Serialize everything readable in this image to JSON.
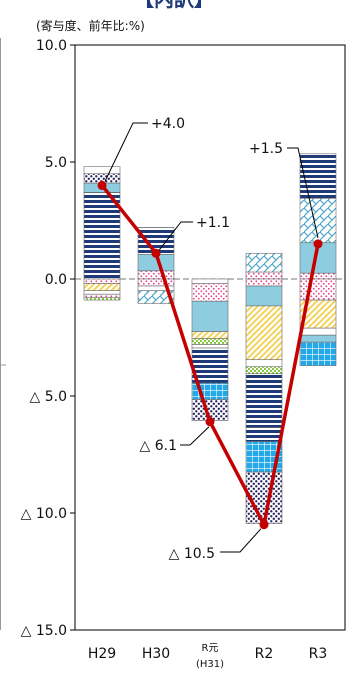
{
  "header_fragment": "【内訳】",
  "chart_data": {
    "type": "bar+line",
    "unit_label": "(寄与度、前年比:%)",
    "ylim": [
      -15,
      10
    ],
    "yticks": [
      {
        "value": 10,
        "label": "10.0"
      },
      {
        "value": 5,
        "label": "5.0"
      },
      {
        "value": 0,
        "label": "0.0"
      },
      {
        "value": -5,
        "label": "△ 5.0"
      },
      {
        "value": -10,
        "label": "△ 10.0"
      },
      {
        "value": -15,
        "label": "△ 15.0"
      }
    ],
    "categories": [
      {
        "label": "H29",
        "sub": ""
      },
      {
        "label": "H30",
        "sub": ""
      },
      {
        "label": "R元",
        "sub": "(H31)"
      },
      {
        "label": "R2",
        "sub": ""
      },
      {
        "label": "R3",
        "sub": ""
      }
    ],
    "stacks": [
      {
        "pos": [
          {
            "v": 3.7,
            "p": "hstripe-navy"
          },
          {
            "v": 0.4,
            "p": "solid-blue"
          },
          {
            "v": 0.4,
            "p": "dots-navy"
          },
          {
            "v": 0.3,
            "p": "plain"
          }
        ],
        "neg": [
          {
            "v": 0.2,
            "p": "dots-pink"
          },
          {
            "v": 0.3,
            "p": "diag-yellow"
          },
          {
            "v": 0.15,
            "p": "plain"
          },
          {
            "v": 0.15,
            "p": "dots-pink"
          },
          {
            "v": 0.1,
            "p": "check-green"
          }
        ]
      },
      {
        "pos": [
          {
            "v": 0.35,
            "p": "dots-pink"
          },
          {
            "v": 0.7,
            "p": "solid-blue"
          },
          {
            "v": 1.15,
            "p": "hstripe-navy"
          }
        ],
        "neg": [
          {
            "v": 0.3,
            "p": "dots-pink"
          },
          {
            "v": 0.2,
            "p": "plain"
          },
          {
            "v": 0.55,
            "p": "diag-blue"
          }
        ]
      },
      {
        "pos": [],
        "neg": [
          {
            "v": 0.2,
            "p": "plain"
          },
          {
            "v": 0.75,
            "p": "dots-pink"
          },
          {
            "v": 1.3,
            "p": "solid-blue"
          },
          {
            "v": 0.3,
            "p": "diag-yellow"
          },
          {
            "v": 0.25,
            "p": "check-green"
          },
          {
            "v": 0.15,
            "p": "plain"
          },
          {
            "v": 1.5,
            "p": "hstripe-navy"
          },
          {
            "v": 0.7,
            "p": "grid-cyan"
          },
          {
            "v": 0.9,
            "p": "dots-navy"
          }
        ]
      },
      {
        "pos": [
          {
            "v": 0.3,
            "p": "dots-pink"
          },
          {
            "v": 0.8,
            "p": "diag-blue"
          }
        ],
        "neg": [
          {
            "v": 0.3,
            "p": "dots-pink"
          },
          {
            "v": 0.85,
            "p": "solid-blue"
          },
          {
            "v": 2.3,
            "p": "diag-yellow"
          },
          {
            "v": 0.3,
            "p": "plain"
          },
          {
            "v": 0.3,
            "p": "check-green"
          },
          {
            "v": 2.3,
            "p": "hstripe-navy"
          },
          {
            "v": 0.6,
            "p": "hstripe-navy"
          },
          {
            "v": 1.3,
            "p": "grid-cyan"
          },
          {
            "v": 2.2,
            "p": "dots-navy"
          }
        ]
      },
      {
        "pos": [
          {
            "v": 0.25,
            "p": "dots-pink"
          },
          {
            "v": 1.3,
            "p": "solid-blue"
          },
          {
            "v": 1.9,
            "p": "diag-blue"
          },
          {
            "v": 1.9,
            "p": "hstripe-navy"
          }
        ],
        "neg": [
          {
            "v": 0.9,
            "p": "dots-pink"
          },
          {
            "v": 1.2,
            "p": "diag-yellow"
          },
          {
            "v": 0.3,
            "p": "plain"
          },
          {
            "v": 0.3,
            "p": "solid-blue"
          },
          {
            "v": 1.0,
            "p": "grid-cyan"
          }
        ]
      }
    ],
    "total_series": {
      "values": [
        4.0,
        1.1,
        -6.1,
        -10.5,
        1.5
      ],
      "labels": [
        "+4.0",
        "+1.1",
        "△ 6.1",
        "△ 10.5",
        "+1.5"
      ],
      "color": "#c40000"
    },
    "colors": {
      "navy": "#1f3a78",
      "blue": "#8ecde0",
      "pink": "#e83a8a",
      "yellow": "#f5d25a",
      "green": "#88c840",
      "cyan": "#24a9e8",
      "frame": "#000000",
      "grid": "#888888"
    }
  }
}
